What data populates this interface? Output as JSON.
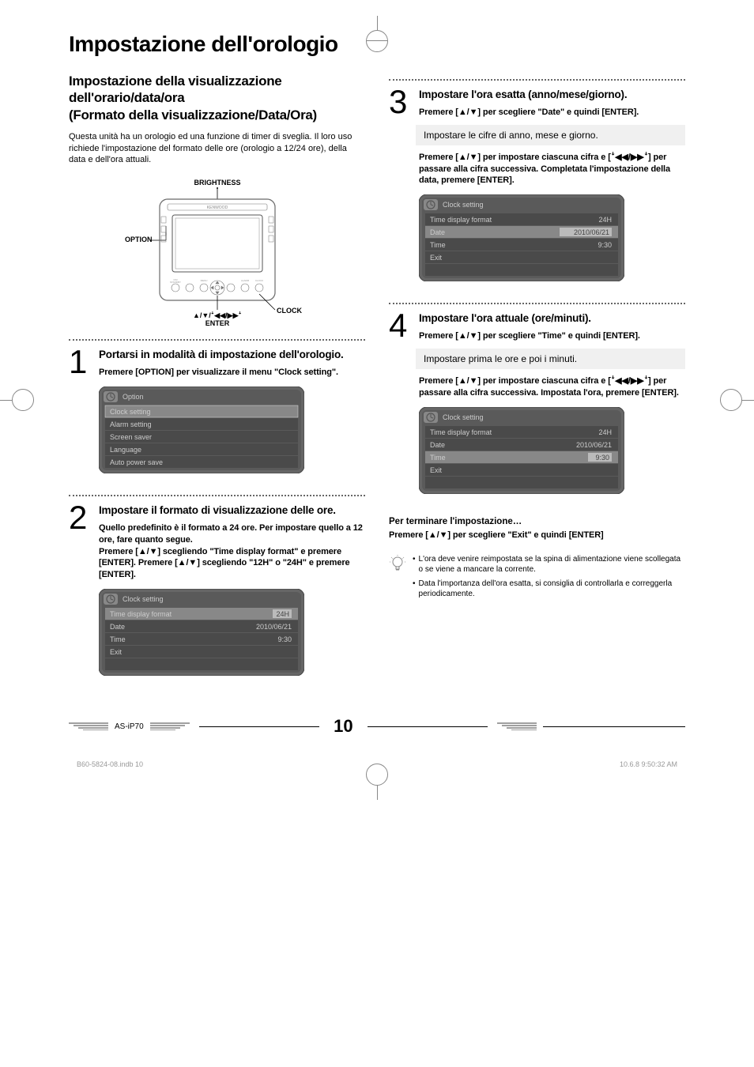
{
  "main_title": "Impostazione dell'orologio",
  "subtitle": "Impostazione della visualizzazione dell'orario/data/ora\n(Formato della visualizzazione/Data/Ora)",
  "intro": "Questa unità ha un orologio ed una funzione di timer di sveglia. Il loro uso richiede l'impostazione del formato delle ore (orologio a 12/24 ore), della data e dell'ora attuali.",
  "diagram": {
    "label_brightness": "BRIGHTNESS",
    "label_option": "OPTION",
    "label_clock": "CLOCK",
    "label_nav": "▲/▼/ꜜ◀◀/▶▶ꜜ",
    "label_enter": "ENTER",
    "device_brand": "KENWOOD",
    "btn_labels": [
      "ON/STANDBY",
      "",
      "MENU",
      "",
      "",
      "ALARM",
      "",
      "CLOCK"
    ]
  },
  "steps": [
    {
      "num": "1",
      "title": "Portarsi in modalità di impostazione dell'orologio.",
      "text": "Premere [OPTION] per visualizzare il menu \"Clock setting\".",
      "screen": {
        "title": "Option",
        "rows": [
          {
            "l": "Clock setting",
            "r": "",
            "sel": true
          },
          {
            "l": "Alarm setting",
            "r": ""
          },
          {
            "l": "Screen saver",
            "r": ""
          },
          {
            "l": "Language",
            "r": ""
          },
          {
            "l": "Auto power save",
            "r": ""
          }
        ]
      }
    },
    {
      "num": "2",
      "title": "Impostare il formato di visualizzazione delle ore.",
      "text": "Quello predefinito è il formato a 24 ore. Per impostare quello a 12 ore, fare quanto segue.\nPremere [▲/▼] scegliendo \"Time display format\" e premere [ENTER]. Premere [▲/▼] scegliendo \"12H\" o \"24H\" e premere [ENTER].",
      "screen": {
        "title": "Clock setting",
        "rows": [
          {
            "l": "Time display format",
            "r": "24H",
            "sel": true
          },
          {
            "l": "Date",
            "r": "2010/06/21"
          },
          {
            "l": "Time",
            "r": "9:30"
          },
          {
            "l": "Exit",
            "r": ""
          },
          {
            "l": "",
            "r": ""
          }
        ]
      }
    },
    {
      "num": "3",
      "title": "Impostare l'ora esatta (anno/mese/giorno).",
      "text1": "Premere [▲/▼] per scegliere \"Date\" e quindi [ENTER].",
      "sub": "Impostare le cifre di anno, mese e giorno.",
      "text2": "Premere [▲/▼] per impostare ciascuna cifra e [ꜜ◀◀/▶▶ꜜ] per passare alla cifra successiva. Completata l'impostazione della data, premere [ENTER].",
      "screen": {
        "title": "Clock setting",
        "rows": [
          {
            "l": "Time display format",
            "r": "24H"
          },
          {
            "l": "Date",
            "r": "2010/06/21",
            "sel": true
          },
          {
            "l": "Time",
            "r": "9:30"
          },
          {
            "l": "Exit",
            "r": ""
          },
          {
            "l": "",
            "r": ""
          }
        ]
      }
    },
    {
      "num": "4",
      "title": "Impostare l'ora attuale (ore/minuti).",
      "text1": "Premere [▲/▼] per scegliere \"Time\" e quindi [ENTER].",
      "sub": "Impostare prima le ore e poi i minuti.",
      "text2": "Premere [▲/▼] per impostare ciascuna cifra e [ꜜ◀◀/▶▶ꜜ] per passare alla cifra successiva. Impostata l'ora, premere [ENTER].",
      "screen": {
        "title": "Clock setting",
        "rows": [
          {
            "l": "Time display format",
            "r": "24H"
          },
          {
            "l": "Date",
            "r": "2010/06/21"
          },
          {
            "l": "Time",
            "r": "9:30",
            "sel": true
          },
          {
            "l": "Exit",
            "r": ""
          },
          {
            "l": "",
            "r": ""
          }
        ]
      }
    }
  ],
  "finish": {
    "title": "Per terminare l'impostazione…",
    "text": "Premere [▲/▼] per scegliere \"Exit\" e quindi [ENTER]"
  },
  "tips": [
    "L'ora deve venire reimpostata se la spina di alimentazione viene scollegata o se viene a mancare la corrente.",
    "Data l'importanza dell'ora esatta, si consiglia di controllarla e correggerla periodicamente."
  ],
  "footer": {
    "model": "AS-iP70",
    "page": "10"
  },
  "print_meta": {
    "file": "B60-5824-08.indb   10",
    "time": "10.6.8   9:50:32 AM"
  },
  "colors": {
    "screen_bg": "#5a5a5a",
    "screen_row": "#4a4a4a",
    "screen_sel": "#888888",
    "screen_text": "#cccccc",
    "screen_border": "#333333"
  }
}
